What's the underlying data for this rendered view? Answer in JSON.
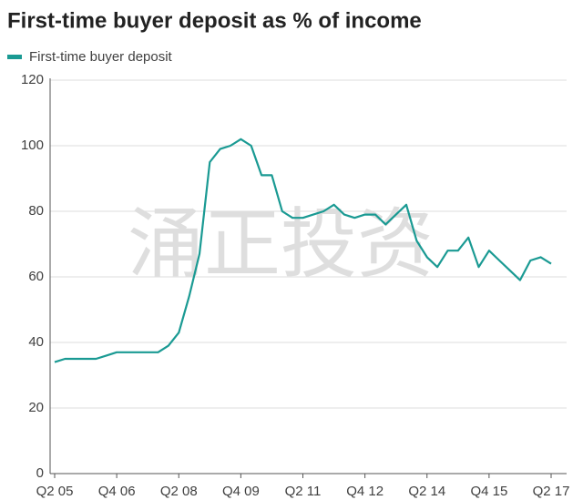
{
  "chart_data": {
    "type": "line",
    "title": "First-time buyer deposit as % of income",
    "watermark": "涌正投资",
    "categories": [
      "Q2 05",
      null,
      null,
      null,
      null,
      null,
      "Q4 06",
      null,
      null,
      null,
      null,
      null,
      "Q2 08",
      null,
      null,
      null,
      null,
      null,
      "Q4 09",
      null,
      null,
      null,
      null,
      null,
      "Q2 11",
      null,
      null,
      null,
      null,
      null,
      "Q4 12",
      null,
      null,
      null,
      null,
      null,
      "Q2 14",
      null,
      null,
      null,
      null,
      null,
      "Q4 15",
      null,
      null,
      null,
      null,
      null,
      "Q2 17"
    ],
    "series": [
      {
        "name": "First-time buyer deposit",
        "color": "#1a9a93",
        "values": [
          34,
          35,
          35,
          35,
          35,
          36,
          37,
          37,
          37,
          37,
          37,
          39,
          43,
          54,
          67,
          95,
          99,
          100,
          102,
          100,
          91,
          91,
          80,
          78,
          78,
          79,
          80,
          82,
          79,
          78,
          79,
          79,
          76,
          79,
          82,
          71,
          66,
          63,
          68,
          68,
          72,
          63,
          68,
          65,
          62,
          59,
          65,
          66,
          64
        ]
      }
    ],
    "ylim": [
      0,
      120
    ],
    "yticks": [
      0,
      20,
      40,
      60,
      80,
      100,
      120
    ],
    "grid": true
  }
}
